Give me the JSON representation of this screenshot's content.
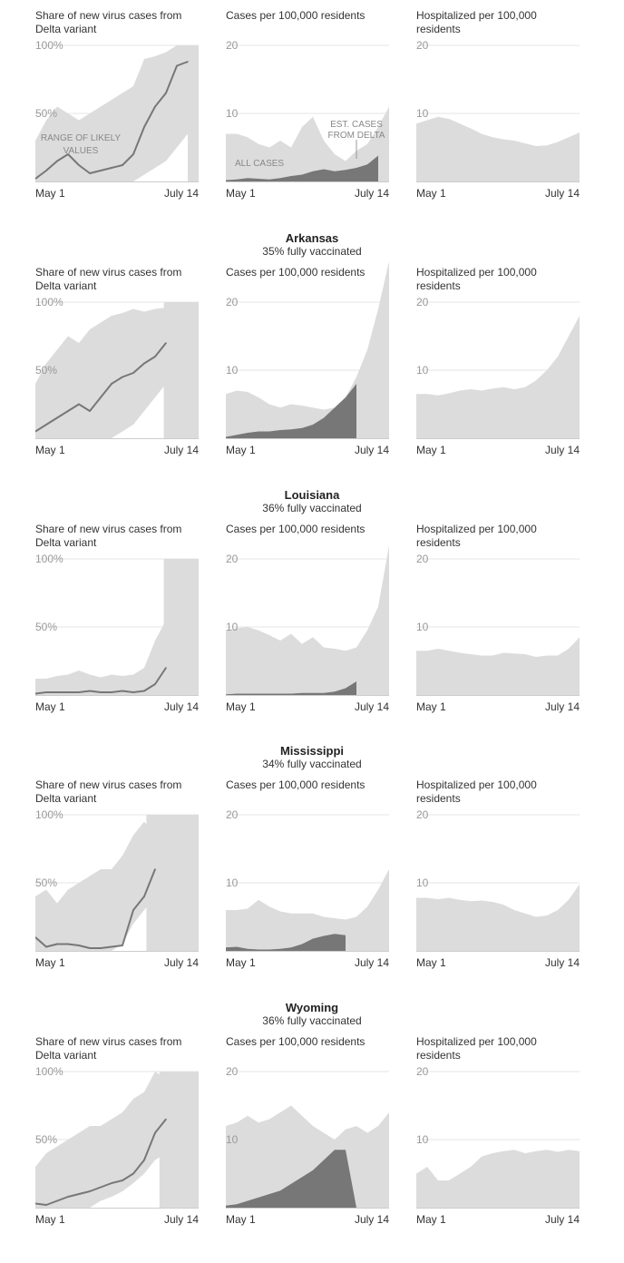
{
  "x_start_label": "May 1",
  "x_end_label": "July 14",
  "colors": {
    "band": "#dcdcdc",
    "line": "#777777",
    "delta": "#777777",
    "grid": "#e6e6e6",
    "axis": "#cccccc"
  },
  "panel_titles": {
    "delta": "Share of new virus cases from Delta variant",
    "cases": "Cases per 100,000 residents",
    "hosp": "Hospitalized per 100,000 residents"
  },
  "annotations": {
    "range": [
      "RANGE OF LIKELY",
      "VALUES"
    ],
    "est": [
      "EST. CASES",
      "FROM DELTA"
    ],
    "all": "ALL CASES"
  },
  "chart_data": [
    {
      "state": "",
      "vaccinated": "",
      "charts": [
        {
          "type": "area",
          "metric": "delta",
          "ylim": [
            0,
            100
          ],
          "yticks": [
            50,
            100
          ],
          "ytick_labels": [
            "50%",
            "100%"
          ],
          "grid": true,
          "x": [
            0,
            5,
            10,
            15,
            20,
            25,
            30,
            35,
            40,
            45,
            50,
            55,
            60,
            65,
            70,
            75
          ],
          "band_low": [
            0,
            0,
            0,
            0,
            0,
            0,
            0,
            0,
            0,
            0,
            5,
            10,
            15,
            25,
            35,
            45
          ],
          "band_high": [
            30,
            45,
            55,
            50,
            45,
            50,
            55,
            60,
            65,
            70,
            90,
            92,
            95,
            100,
            100,
            100
          ],
          "line": [
            2,
            8,
            15,
            20,
            12,
            6,
            8,
            10,
            12,
            20,
            40,
            55,
            65,
            85,
            88,
            78
          ],
          "line_end": 70,
          "shade_start": 70
        },
        {
          "type": "area",
          "metric": "cases",
          "ylim": [
            0,
            20
          ],
          "yticks": [
            10,
            20
          ],
          "ytick_labels": [
            "10",
            "20"
          ],
          "grid": true,
          "x": [
            0,
            5,
            10,
            15,
            20,
            25,
            30,
            35,
            40,
            45,
            50,
            55,
            60,
            65,
            70,
            75
          ],
          "band": [
            7,
            7,
            6.5,
            5.5,
            5,
            6,
            5,
            8,
            9.5,
            6,
            4,
            3,
            4.5,
            5.5,
            8,
            11
          ],
          "delta": [
            0.2,
            0.3,
            0.5,
            0.4,
            0.3,
            0.5,
            0.8,
            1,
            1.5,
            1.8,
            1.5,
            1.7,
            2,
            2.5,
            3.8,
            11
          ],
          "delta_end": 70
        },
        {
          "type": "area",
          "metric": "hosp",
          "ylim": [
            0,
            20
          ],
          "yticks": [
            10,
            20
          ],
          "ytick_labels": [
            "10",
            "20"
          ],
          "grid": true,
          "x": [
            0,
            5,
            10,
            15,
            20,
            25,
            30,
            35,
            40,
            45,
            50,
            55,
            60,
            65,
            70,
            75
          ],
          "band": [
            8.5,
            9,
            9.5,
            9.2,
            8.5,
            7.8,
            7,
            6.5,
            6.2,
            6,
            5.6,
            5.2,
            5.3,
            5.8,
            6.5,
            7.2
          ]
        }
      ]
    },
    {
      "state": "Arkansas",
      "vaccinated": "35% fully vaccinated",
      "charts": [
        {
          "type": "area",
          "metric": "delta",
          "ylim": [
            0,
            100
          ],
          "yticks": [
            50,
            100
          ],
          "ytick_labels": [
            "50%",
            "100%"
          ],
          "grid": true,
          "x": [
            0,
            5,
            10,
            15,
            20,
            25,
            30,
            35,
            40,
            45,
            50,
            55,
            60,
            65,
            70,
            75
          ],
          "band_low": [
            0,
            0,
            0,
            0,
            0,
            0,
            0,
            0,
            5,
            10,
            20,
            30,
            40,
            50,
            40,
            35
          ],
          "band_high": [
            40,
            55,
            65,
            75,
            70,
            80,
            85,
            90,
            92,
            95,
            93,
            95,
            96,
            92,
            80,
            60
          ],
          "line": [
            5,
            10,
            15,
            20,
            25,
            20,
            30,
            40,
            45,
            48,
            55,
            60,
            70,
            80,
            75,
            72
          ],
          "line_end": 59,
          "shade_start": 59
        },
        {
          "type": "area",
          "metric": "cases",
          "ylim": [
            0,
            20
          ],
          "yticks": [
            10,
            20
          ],
          "ytick_labels": [
            "10",
            "20"
          ],
          "grid": true,
          "x": [
            0,
            5,
            10,
            15,
            20,
            25,
            30,
            35,
            40,
            45,
            50,
            55,
            60,
            65,
            70,
            75
          ],
          "band": [
            6.5,
            7,
            6.8,
            6,
            5,
            4.5,
            5,
            4.8,
            4.5,
            4.2,
            4.5,
            6,
            9,
            13,
            19,
            26
          ],
          "delta": [
            0.2,
            0.5,
            0.8,
            1,
            1,
            1.2,
            1.3,
            1.5,
            2,
            3,
            4.5,
            6,
            8,
            9.5,
            0,
            0
          ],
          "delta_end": 59
        },
        {
          "type": "area",
          "metric": "hosp",
          "ylim": [
            0,
            20
          ],
          "yticks": [
            10,
            20
          ],
          "ytick_labels": [
            "10",
            "20"
          ],
          "grid": true,
          "x": [
            0,
            5,
            10,
            15,
            20,
            25,
            30,
            35,
            40,
            45,
            50,
            55,
            60,
            65,
            70,
            75
          ],
          "band": [
            6.5,
            6.5,
            6.3,
            6.6,
            7,
            7.2,
            7,
            7.3,
            7.5,
            7.2,
            7.5,
            8.5,
            10,
            12,
            15,
            18
          ]
        }
      ]
    },
    {
      "state": "Louisiana",
      "vaccinated": "36% fully vaccinated",
      "charts": [
        {
          "type": "area",
          "metric": "delta",
          "ylim": [
            0,
            100
          ],
          "yticks": [
            50,
            100
          ],
          "ytick_labels": [
            "50%",
            "100%"
          ],
          "grid": true,
          "x": [
            0,
            5,
            10,
            15,
            20,
            25,
            30,
            35,
            40,
            45,
            50,
            55,
            60,
            65,
            70,
            75
          ],
          "band_low": [
            0,
            0,
            0,
            0,
            0,
            0,
            0,
            0,
            0,
            0,
            0,
            0,
            0,
            5,
            10,
            20
          ],
          "band_high": [
            12,
            12,
            14,
            15,
            18,
            15,
            13,
            15,
            14,
            15,
            20,
            40,
            55,
            80,
            98,
            100
          ],
          "line": [
            1,
            2,
            2,
            2,
            2,
            3,
            2,
            2,
            3,
            2,
            3,
            8,
            20,
            35,
            0,
            0
          ],
          "line_end": 59,
          "shade_start": 59
        },
        {
          "type": "area",
          "metric": "cases",
          "ylim": [
            0,
            20
          ],
          "yticks": [
            10,
            20
          ],
          "ytick_labels": [
            "10",
            "20"
          ],
          "grid": true,
          "x": [
            0,
            5,
            10,
            15,
            20,
            25,
            30,
            35,
            40,
            45,
            50,
            55,
            60,
            65,
            70,
            75
          ],
          "band": [
            9.5,
            9.8,
            10,
            9.5,
            8.8,
            8,
            9,
            7.5,
            8.5,
            7,
            6.8,
            6.5,
            7,
            9.5,
            13,
            22
          ],
          "delta": [
            0.1,
            0.2,
            0.2,
            0.2,
            0.2,
            0.2,
            0.2,
            0.3,
            0.3,
            0.3,
            0.5,
            1,
            2,
            3,
            0,
            0
          ],
          "delta_end": 59
        },
        {
          "type": "area",
          "metric": "hosp",
          "ylim": [
            0,
            20
          ],
          "yticks": [
            10,
            20
          ],
          "ytick_labels": [
            "10",
            "20"
          ],
          "grid": true,
          "x": [
            0,
            5,
            10,
            15,
            20,
            25,
            30,
            35,
            40,
            45,
            50,
            55,
            60,
            65,
            70,
            75
          ],
          "band": [
            6.5,
            6.5,
            6.8,
            6.5,
            6.2,
            6,
            5.8,
            5.8,
            6.2,
            6.1,
            6,
            5.6,
            5.8,
            5.8,
            6.8,
            8.5
          ]
        }
      ]
    },
    {
      "state": "Mississippi",
      "vaccinated": "34% fully vaccinated",
      "charts": [
        {
          "type": "area",
          "metric": "delta",
          "ylim": [
            0,
            100
          ],
          "yticks": [
            50,
            100
          ],
          "ytick_labels": [
            "50%",
            "100%"
          ],
          "grid": true,
          "x": [
            0,
            5,
            10,
            15,
            20,
            25,
            30,
            35,
            40,
            45,
            50,
            55,
            60,
            65,
            70,
            75
          ],
          "band_low": [
            0,
            0,
            0,
            0,
            0,
            0,
            0,
            0,
            5,
            20,
            30,
            40,
            35,
            0,
            0,
            0
          ],
          "band_high": [
            40,
            45,
            35,
            45,
            50,
            55,
            60,
            60,
            70,
            85,
            95,
            85,
            80,
            0,
            0,
            0
          ],
          "line": [
            10,
            3,
            5,
            5,
            4,
            2,
            2,
            3,
            4,
            30,
            40,
            60,
            52,
            0,
            0,
            0
          ],
          "line_end": 51,
          "shade_start": 51
        },
        {
          "type": "area",
          "metric": "cases",
          "ylim": [
            0,
            20
          ],
          "yticks": [
            10,
            20
          ],
          "ytick_labels": [
            "10",
            "20"
          ],
          "grid": true,
          "x": [
            0,
            5,
            10,
            15,
            20,
            25,
            30,
            35,
            40,
            45,
            50,
            55,
            60,
            65,
            70,
            75
          ],
          "band": [
            6,
            6,
            6.2,
            7.5,
            6.5,
            5.8,
            5.5,
            5.5,
            5.5,
            5,
            4.8,
            4.6,
            5,
            6.5,
            9,
            12
          ],
          "delta": [
            0.5,
            0.6,
            0.3,
            0.2,
            0.2,
            0.3,
            0.5,
            1,
            1.8,
            2.2,
            2.5,
            2.3,
            0,
            0,
            0,
            0
          ],
          "delta_end": 51
        },
        {
          "type": "area",
          "metric": "hosp",
          "ylim": [
            0,
            20
          ],
          "yticks": [
            10,
            20
          ],
          "ytick_labels": [
            "10",
            "20"
          ],
          "grid": true,
          "x": [
            0,
            5,
            10,
            15,
            20,
            25,
            30,
            35,
            40,
            45,
            50,
            55,
            60,
            65,
            70,
            75
          ],
          "band": [
            7.8,
            7.8,
            7.6,
            7.8,
            7.5,
            7.3,
            7.4,
            7.2,
            6.8,
            6,
            5.5,
            5,
            5.2,
            6,
            7.5,
            9.8
          ]
        }
      ]
    },
    {
      "state": "Wyoming",
      "vaccinated": "36% fully vaccinated",
      "charts": [
        {
          "type": "area",
          "metric": "delta",
          "ylim": [
            0,
            100
          ],
          "yticks": [
            50,
            100
          ],
          "ytick_labels": [
            "50%",
            "100%"
          ],
          "grid": true,
          "x": [
            0,
            5,
            10,
            15,
            20,
            25,
            30,
            35,
            40,
            45,
            50,
            55,
            60,
            65,
            70,
            75
          ],
          "band_low": [
            0,
            0,
            0,
            0,
            0,
            0,
            5,
            8,
            12,
            18,
            25,
            35,
            40,
            45,
            50,
            55
          ],
          "band_high": [
            30,
            40,
            45,
            50,
            55,
            60,
            60,
            65,
            70,
            80,
            85,
            100,
            95,
            100,
            100,
            100
          ],
          "line": [
            3,
            2,
            5,
            8,
            10,
            12,
            15,
            18,
            20,
            25,
            35,
            55,
            65,
            75,
            0,
            0
          ],
          "line_end": 57,
          "shade_start": 57
        },
        {
          "type": "area",
          "metric": "cases",
          "ylim": [
            0,
            20
          ],
          "yticks": [
            10,
            20
          ],
          "ytick_labels": [
            "10",
            "20"
          ],
          "grid": true,
          "x": [
            0,
            5,
            10,
            15,
            20,
            25,
            30,
            35,
            40,
            45,
            50,
            55,
            60,
            65,
            70,
            75
          ],
          "band": [
            12,
            12.5,
            13.5,
            12.5,
            13,
            14,
            15,
            13.5,
            12,
            11,
            10,
            11.5,
            12,
            11,
            12,
            14
          ],
          "delta": [
            0.3,
            0.5,
            1,
            1.5,
            2,
            2.5,
            3.5,
            4.5,
            5.5,
            7,
            8.5,
            0,
            0,
            0,
            0,
            0
          ],
          "delta_end": 57
        },
        {
          "type": "area",
          "metric": "hosp",
          "ylim": [
            0,
            20
          ],
          "yticks": [
            10,
            20
          ],
          "ytick_labels": [
            "10",
            "20"
          ],
          "grid": true,
          "x": [
            0,
            5,
            10,
            15,
            20,
            25,
            30,
            35,
            40,
            45,
            50,
            55,
            60,
            65,
            70,
            75
          ],
          "band": [
            5,
            6,
            4,
            4,
            5,
            6,
            7.5,
            8,
            8.3,
            8.5,
            8,
            8.3,
            8.5,
            8.2,
            8.5,
            8.3
          ]
        }
      ]
    }
  ]
}
